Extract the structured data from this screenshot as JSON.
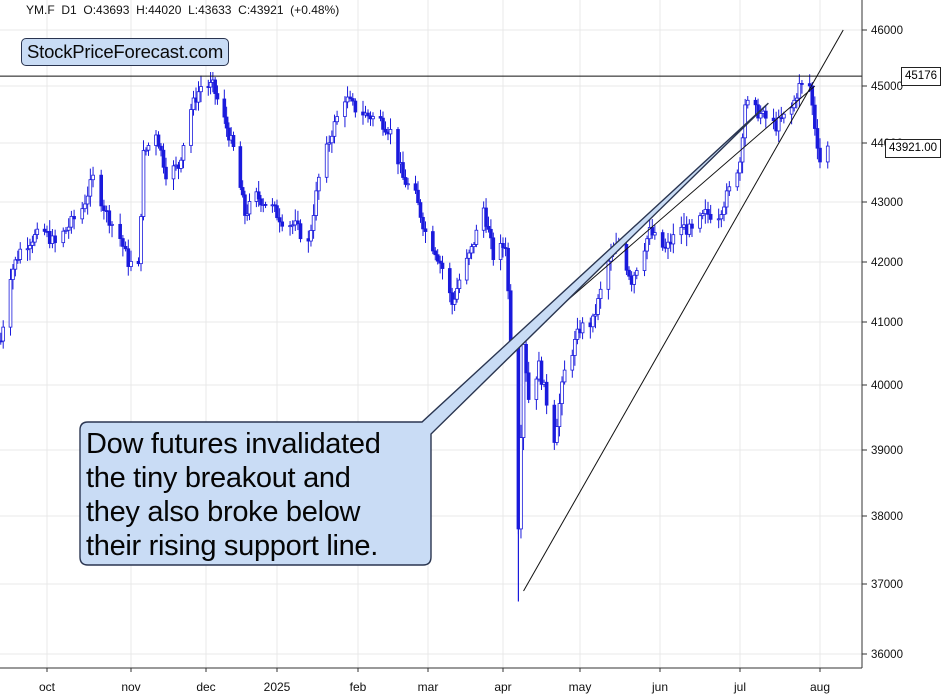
{
  "header": {
    "symbol": "YM.F",
    "timeframe": "D1",
    "ohlc_text": "O:43693  H:44020  L:43633  C:43921  (+0.48%)"
  },
  "watermark": "StockPriceForecast.com",
  "callout": {
    "lines": [
      "Dow futures invalidated",
      "the tiny breakout and",
      "they also broke below",
      "their rising support line."
    ]
  },
  "price_tags": {
    "resistance": "45176",
    "last": "43921.00"
  },
  "colors": {
    "candle": "#1a1adc",
    "grid": "#e8e8e8",
    "callout_fill": "#c9dcf5",
    "line": "#111111"
  },
  "chart_data": {
    "type": "candlestick",
    "title": "",
    "xlabel": "",
    "ylabel": "",
    "ylim": [
      36000,
      46000
    ],
    "y_ticks": [
      "46000",
      "45000",
      "44000",
      "43000",
      "42000",
      "41000",
      "40000",
      "39000",
      "38000",
      "37000",
      "36000"
    ],
    "x_ticks": [
      {
        "label": "oct",
        "date": "2024-10-01"
      },
      {
        "label": "nov",
        "date": "2024-11-01"
      },
      {
        "label": "dec",
        "date": "2024-12-01"
      },
      {
        "label": "2025",
        "date": "2025-01-01"
      },
      {
        "label": "feb",
        "date": "2025-02-01"
      },
      {
        "label": "mar",
        "date": "2025-03-01"
      },
      {
        "label": "apr",
        "date": "2025-04-01"
      },
      {
        "label": "may",
        "date": "2025-05-01"
      },
      {
        "label": "jun",
        "date": "2025-06-01"
      },
      {
        "label": "jul",
        "date": "2025-07-01"
      },
      {
        "label": "aug",
        "date": "2025-08-01"
      }
    ],
    "series": [
      {
        "x": [
          "2024-09-12",
          "2024-09-16",
          "2024-09-20",
          "2024-09-25",
          "2024-09-30",
          "2024-10-04",
          "2024-10-09",
          "2024-10-14",
          "2024-10-18",
          "2024-10-23",
          "2024-10-28",
          "2024-10-31",
          "2024-11-04",
          "2024-11-06",
          "2024-11-11",
          "2024-11-15",
          "2024-11-20",
          "2024-11-25",
          "2024-11-29",
          "2024-12-04",
          "2024-12-09",
          "2024-12-13",
          "2024-12-18",
          "2024-12-23",
          "2024-12-30",
          "2025-01-03",
          "2025-01-08",
          "2025-01-13",
          "2025-01-17",
          "2025-01-22",
          "2025-01-27",
          "2025-01-31",
          "2025-02-04",
          "2025-02-10",
          "2025-02-14",
          "2025-02-19",
          "2025-02-24",
          "2025-02-28",
          "2025-03-04",
          "2025-03-07",
          "2025-03-11",
          "2025-03-14",
          "2025-03-19",
          "2025-03-24",
          "2025-03-28",
          "2025-04-02",
          "2025-04-04",
          "2025-04-07",
          "2025-04-09",
          "2025-04-11",
          "2025-04-15",
          "2025-04-21",
          "2025-04-25",
          "2025-05-01",
          "2025-05-06",
          "2025-05-12",
          "2025-05-16",
          "2025-05-21",
          "2025-05-28",
          "2025-06-03",
          "2025-06-09",
          "2025-06-13",
          "2025-06-18",
          "2025-06-23",
          "2025-06-27",
          "2025-07-01",
          "2025-07-03",
          "2025-07-09",
          "2025-07-15",
          "2025-07-21",
          "2025-07-24",
          "2025-07-28",
          "2025-07-30",
          "2025-08-01",
          "2025-08-04"
        ],
        "close": [
          40700,
          41800,
          42200,
          42400,
          42500,
          42300,
          42600,
          42900,
          43400,
          42800,
          42400,
          42000,
          41900,
          43800,
          44200,
          43500,
          43600,
          44600,
          45000,
          45000,
          44400,
          43900,
          42800,
          43100,
          42900,
          42700,
          42600,
          42300,
          43400,
          44200,
          44800,
          44600,
          44500,
          44400,
          44200,
          43400,
          43100,
          42500,
          42200,
          41900,
          41300,
          41700,
          42200,
          42900,
          42100,
          42300,
          40700,
          37900,
          40700,
          39800,
          40300,
          39200,
          40200,
          40900,
          41000,
          42000,
          42300,
          41700,
          42500,
          42200,
          42600,
          42500,
          42800,
          42800,
          43200,
          43700,
          44700,
          44500,
          44300,
          44600,
          45000,
          45000,
          44300,
          43700,
          43921
        ]
      }
    ],
    "lines": [
      {
        "name": "horizontal resistance",
        "value": 45176
      },
      {
        "name": "rising support line",
        "from": {
          "date": "2025-04-09",
          "value": 36900
        },
        "to": {
          "date": "2025-08-10",
          "value": 46000
        }
      },
      {
        "name": "breakout line",
        "from": {
          "date": "2025-04-05",
          "value": 40600
        },
        "to": {
          "date": "2025-07-30",
          "value": 45000
        }
      }
    ]
  }
}
